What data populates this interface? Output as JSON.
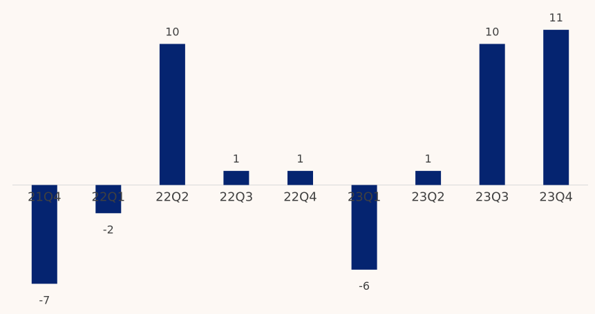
{
  "colors": {
    "background": "#fdf8f4",
    "bar": "#052470",
    "axis": "#d9d9d9",
    "text": "#404040"
  },
  "chart_data": {
    "type": "bar",
    "categories": [
      "21Q4",
      "22Q1",
      "22Q2",
      "22Q3",
      "22Q4",
      "23Q1",
      "23Q2",
      "23Q3",
      "23Q4"
    ],
    "values": [
      -7,
      -2,
      10,
      1,
      1,
      -6,
      1,
      10,
      11
    ],
    "data_labels": [
      "-7",
      "-2",
      "10",
      "1",
      "1",
      "-6",
      "1",
      "10",
      "11"
    ],
    "title": "",
    "xlabel": "",
    "ylabel": "",
    "ylim": [
      -7,
      11
    ],
    "grid": false,
    "legend": "none"
  }
}
